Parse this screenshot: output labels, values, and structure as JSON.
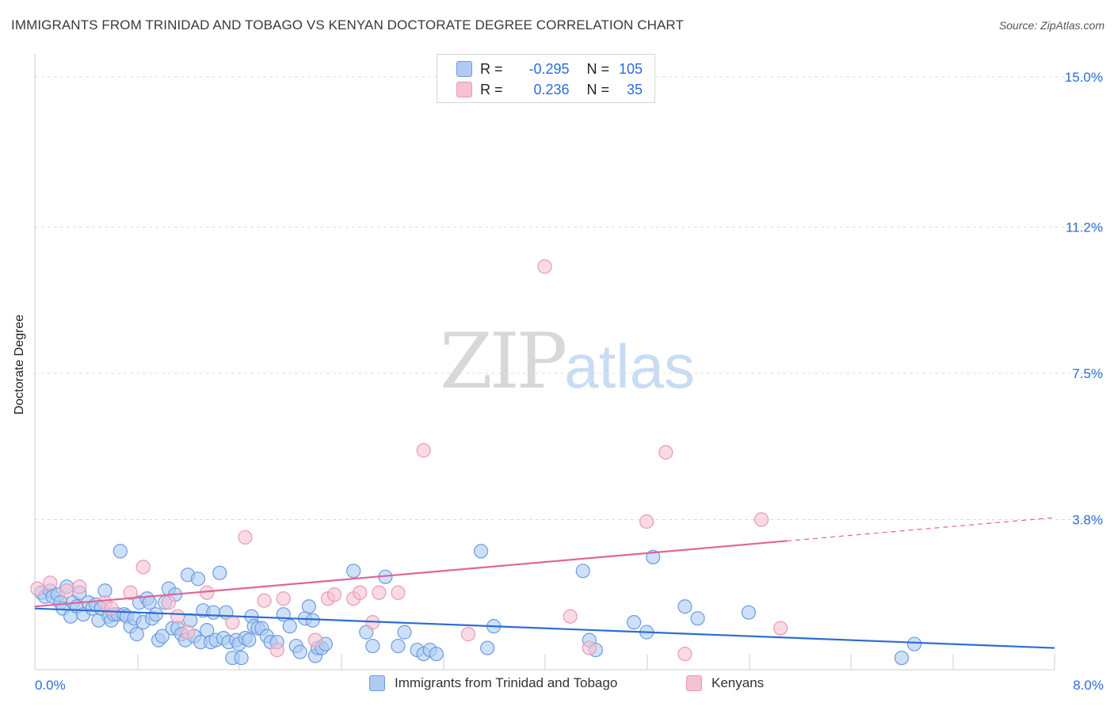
{
  "header": {
    "title": "IMMIGRANTS FROM TRINIDAD AND TOBAGO VS KENYAN DOCTORATE DEGREE CORRELATION CHART",
    "source": "Source: ZipAtlas.com"
  },
  "watermark": {
    "zip": "ZIP",
    "atlas": "atlas"
  },
  "stats": {
    "r_label": "R =",
    "n_label": "N =",
    "rows": [
      {
        "r": "-0.295",
        "n": "105",
        "color": "#5b8fe0"
      },
      {
        "r": "0.236",
        "n": "35",
        "color": "#e87fa3"
      }
    ]
  },
  "colors": {
    "blue_fill": "#aecbf1",
    "blue_stroke": "#6d9be0",
    "blue_line": "#2a6dd6",
    "pink_fill": "#f6c1d2",
    "pink_stroke": "#e89ab4",
    "pink_line": "#e0649a",
    "tick_label": "#2a6dd6",
    "grid": "#dcdcdc"
  },
  "chart_data": {
    "type": "scatter",
    "title": "IMMIGRANTS FROM TRINIDAD AND TOBAGO VS KENYAN DOCTORATE DEGREE CORRELATION CHART",
    "xlabel": "",
    "ylabel": "Doctorate Degree",
    "xlim": [
      0,
      8.0
    ],
    "ylim": [
      0,
      15.0
    ],
    "x_tick_labels": [
      "0.0%",
      "8.0%"
    ],
    "y_ticks": [
      3.8,
      7.5,
      11.2,
      15.0
    ],
    "y_tick_labels": [
      "3.8%",
      "7.5%",
      "11.2%",
      "15.0%"
    ],
    "grid": true,
    "legend_position": "bottom",
    "series": [
      {
        "name": "Immigrants from Trinidad and Tobago",
        "color": "#aecbf1",
        "trend": {
          "x": [
            0,
            8.0
          ],
          "y": [
            1.55,
            0.55
          ],
          "dashed_from": null
        },
        "points": [
          [
            0.05,
            1.95
          ],
          [
            0.08,
            1.85
          ],
          [
            0.12,
            2.0
          ],
          [
            0.14,
            1.85
          ],
          [
            0.18,
            1.9
          ],
          [
            0.2,
            1.7
          ],
          [
            0.22,
            1.55
          ],
          [
            0.25,
            2.1
          ],
          [
            0.28,
            1.35
          ],
          [
            0.3,
            1.7
          ],
          [
            0.33,
            1.6
          ],
          [
            0.35,
            1.95
          ],
          [
            0.38,
            1.4
          ],
          [
            0.42,
            1.7
          ],
          [
            0.45,
            1.55
          ],
          [
            0.48,
            1.65
          ],
          [
            0.5,
            1.25
          ],
          [
            0.52,
            1.55
          ],
          [
            0.55,
            2.0
          ],
          [
            0.58,
            1.35
          ],
          [
            0.6,
            1.25
          ],
          [
            0.62,
            1.4
          ],
          [
            0.65,
            1.4
          ],
          [
            0.67,
            3.0
          ],
          [
            0.7,
            1.4
          ],
          [
            0.72,
            1.35
          ],
          [
            0.75,
            1.1
          ],
          [
            0.78,
            1.3
          ],
          [
            0.8,
            0.9
          ],
          [
            0.82,
            1.7
          ],
          [
            0.85,
            1.2
          ],
          [
            0.88,
            1.8
          ],
          [
            0.9,
            1.7
          ],
          [
            0.92,
            1.3
          ],
          [
            0.95,
            1.4
          ],
          [
            0.97,
            0.75
          ],
          [
            1.0,
            0.85
          ],
          [
            1.02,
            1.7
          ],
          [
            1.05,
            2.05
          ],
          [
            1.08,
            1.05
          ],
          [
            1.1,
            1.9
          ],
          [
            1.12,
            1.05
          ],
          [
            1.15,
            0.9
          ],
          [
            1.18,
            0.75
          ],
          [
            1.2,
            2.4
          ],
          [
            1.22,
            1.25
          ],
          [
            1.25,
            0.85
          ],
          [
            1.28,
            2.3
          ],
          [
            1.3,
            0.7
          ],
          [
            1.32,
            1.5
          ],
          [
            1.35,
            1.0
          ],
          [
            1.38,
            0.7
          ],
          [
            1.4,
            1.45
          ],
          [
            1.42,
            0.75
          ],
          [
            1.45,
            2.45
          ],
          [
            1.48,
            0.8
          ],
          [
            1.5,
            1.45
          ],
          [
            1.52,
            0.7
          ],
          [
            1.55,
            0.3
          ],
          [
            1.58,
            0.75
          ],
          [
            1.6,
            0.65
          ],
          [
            1.62,
            0.3
          ],
          [
            1.65,
            0.8
          ],
          [
            1.68,
            0.75
          ],
          [
            1.7,
            1.35
          ],
          [
            1.72,
            1.1
          ],
          [
            1.75,
            1.05
          ],
          [
            1.78,
            1.05
          ],
          [
            1.82,
            0.85
          ],
          [
            1.85,
            0.7
          ],
          [
            1.9,
            0.7
          ],
          [
            1.95,
            1.4
          ],
          [
            2.0,
            1.1
          ],
          [
            2.05,
            0.6
          ],
          [
            2.08,
            0.45
          ],
          [
            2.12,
            1.3
          ],
          [
            2.15,
            1.6
          ],
          [
            2.18,
            1.25
          ],
          [
            2.2,
            0.35
          ],
          [
            2.22,
            0.55
          ],
          [
            2.25,
            0.55
          ],
          [
            2.28,
            0.65
          ],
          [
            2.5,
            2.5
          ],
          [
            2.6,
            0.95
          ],
          [
            2.65,
            0.6
          ],
          [
            2.75,
            2.35
          ],
          [
            2.85,
            0.6
          ],
          [
            2.9,
            0.95
          ],
          [
            3.0,
            0.5
          ],
          [
            3.05,
            0.4
          ],
          [
            3.1,
            0.5
          ],
          [
            3.15,
            0.4
          ],
          [
            3.5,
            3.0
          ],
          [
            3.55,
            0.55
          ],
          [
            3.6,
            1.1
          ],
          [
            4.3,
            2.5
          ],
          [
            4.35,
            0.75
          ],
          [
            4.4,
            0.5
          ],
          [
            4.7,
            1.2
          ],
          [
            4.8,
            0.95
          ],
          [
            4.85,
            2.85
          ],
          [
            5.1,
            1.6
          ],
          [
            5.2,
            1.3
          ],
          [
            5.6,
            1.45
          ],
          [
            6.8,
            0.3
          ],
          [
            6.9,
            0.65
          ]
        ]
      },
      {
        "name": "Kenyans",
        "color": "#f6c1d2",
        "trend": {
          "x": [
            0,
            8.0
          ],
          "y": [
            1.6,
            3.85
          ],
          "dashed_from": 5.9
        },
        "points": [
          [
            0.02,
            2.05
          ],
          [
            0.12,
            2.2
          ],
          [
            0.25,
            2.0
          ],
          [
            0.35,
            2.1
          ],
          [
            0.55,
            1.7
          ],
          [
            0.6,
            1.55
          ],
          [
            0.75,
            1.95
          ],
          [
            0.85,
            2.6
          ],
          [
            1.05,
            1.7
          ],
          [
            1.12,
            1.35
          ],
          [
            1.2,
            0.95
          ],
          [
            1.35,
            1.95
          ],
          [
            1.55,
            1.2
          ],
          [
            1.65,
            3.35
          ],
          [
            1.8,
            1.75
          ],
          [
            1.9,
            0.5
          ],
          [
            1.95,
            1.8
          ],
          [
            2.2,
            0.75
          ],
          [
            2.3,
            1.8
          ],
          [
            2.35,
            1.9
          ],
          [
            2.5,
            1.8
          ],
          [
            2.55,
            1.95
          ],
          [
            2.65,
            1.2
          ],
          [
            2.7,
            1.95
          ],
          [
            2.85,
            1.95
          ],
          [
            3.05,
            5.55
          ],
          [
            3.4,
            0.9
          ],
          [
            4.0,
            10.2
          ],
          [
            4.2,
            1.35
          ],
          [
            4.35,
            0.55
          ],
          [
            4.8,
            3.75
          ],
          [
            4.95,
            5.5
          ],
          [
            5.1,
            0.4
          ],
          [
            5.7,
            3.8
          ],
          [
            5.85,
            1.05
          ]
        ]
      }
    ]
  },
  "legend": {
    "items": [
      {
        "label": "Immigrants from Trinidad and Tobago"
      },
      {
        "label": "Kenyans"
      }
    ]
  }
}
